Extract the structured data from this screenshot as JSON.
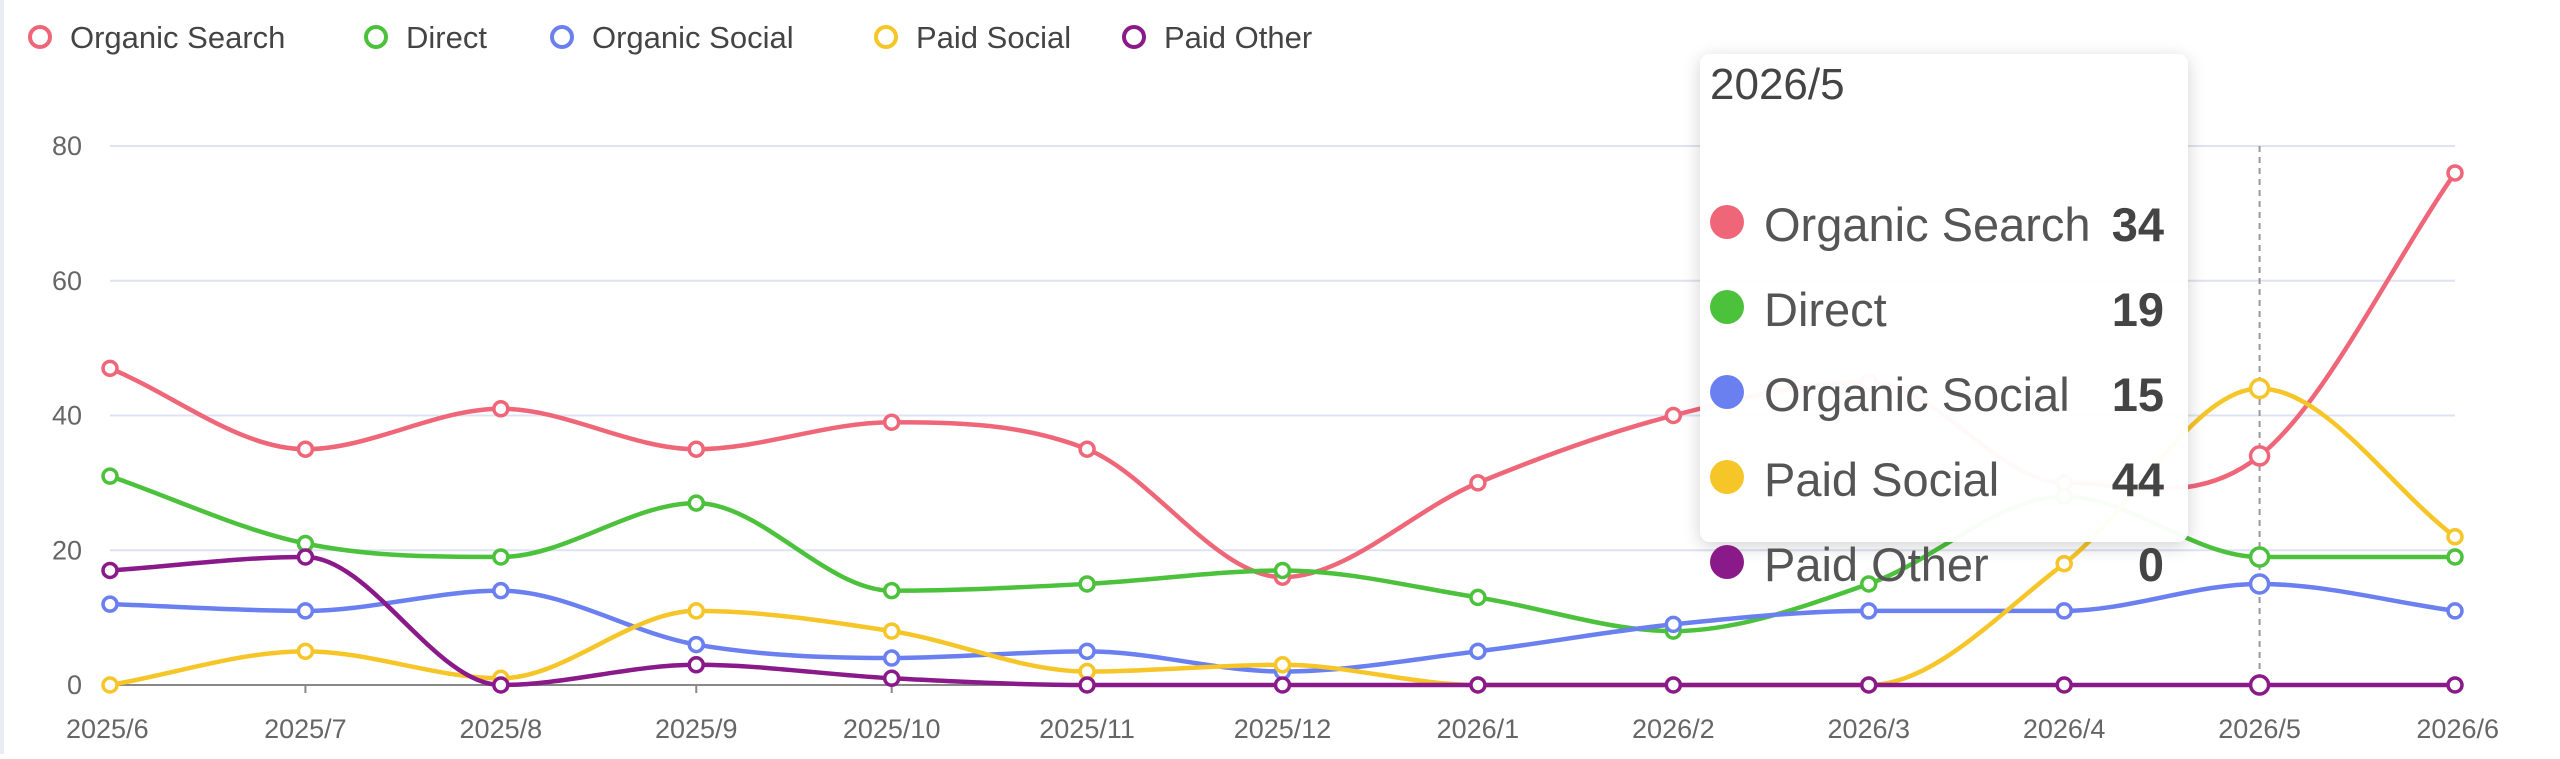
{
  "chart_data": {
    "type": "line",
    "categories": [
      "2025/6",
      "2025/7",
      "2025/8",
      "2025/9",
      "2025/10",
      "2025/11",
      "2025/12",
      "2026/1",
      "2026/2",
      "2026/3",
      "2026/4",
      "2026/5",
      "2026/6"
    ],
    "ylim": [
      0,
      80
    ],
    "yticks": [
      0,
      20,
      40,
      60,
      80
    ],
    "grid": true,
    "legend_position": "top-left",
    "series": [
      {
        "name": "Organic Search",
        "color": "#ef6678",
        "values": [
          47,
          35,
          41,
          35,
          39,
          35,
          16,
          30,
          40,
          45,
          30,
          34,
          76
        ]
      },
      {
        "name": "Direct",
        "color": "#4cc13c",
        "values": [
          31,
          21,
          19,
          27,
          14,
          15,
          17,
          13,
          8,
          15,
          28,
          19,
          19
        ]
      },
      {
        "name": "Organic Social",
        "color": "#6a7ff0",
        "values": [
          12,
          11,
          14,
          6,
          4,
          5,
          2,
          5,
          9,
          11,
          11,
          15,
          11
        ]
      },
      {
        "name": "Paid Social",
        "color": "#f6c528",
        "values": [
          0,
          5,
          1,
          11,
          8,
          2,
          3,
          0,
          0,
          0,
          18,
          44,
          22
        ]
      },
      {
        "name": "Paid Other",
        "color": "#8a1a8a",
        "values": [
          17,
          19,
          0,
          3,
          1,
          0,
          0,
          0,
          0,
          0,
          0,
          0,
          0
        ]
      }
    ],
    "tooltip": {
      "category": "2026/5",
      "rows": [
        {
          "name": "Organic Search",
          "value": "34",
          "color": "#ef6678"
        },
        {
          "name": "Direct",
          "value": "19",
          "color": "#4cc13c"
        },
        {
          "name": "Organic Social",
          "value": "15",
          "color": "#6a7ff0"
        },
        {
          "name": "Paid Social",
          "value": "44",
          "color": "#f6c528"
        },
        {
          "name": "Paid Other",
          "value": "0",
          "color": "#8a1a8a"
        }
      ]
    }
  }
}
